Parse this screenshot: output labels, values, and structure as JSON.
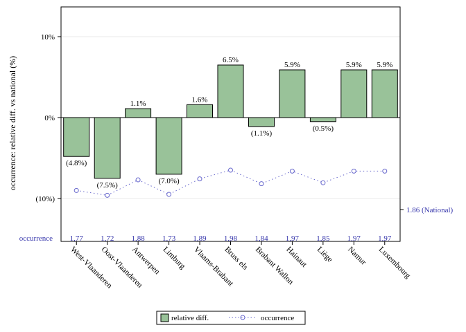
{
  "chart_data": {
    "type": "bar",
    "ylabel": "occurrence: relative diff. vs national (%)",
    "ylim": [
      -15,
      14
    ],
    "yticks": [
      {
        "value": 10,
        "label": "10%"
      },
      {
        "value": 0,
        "label": "0%"
      },
      {
        "value": -10,
        "label": "(10%)"
      }
    ],
    "categories": [
      "West-Vlaanderen",
      "Oost-Vlaanderen",
      "Antwerpen",
      "Limburg",
      "Vlaams-Brabant",
      "Bruss els",
      "Brabant Wallon",
      "Hainaut",
      "Liège",
      "Namur",
      "Luxembourg"
    ],
    "series": [
      {
        "name": "relative diff.",
        "color": "#99c299",
        "values": [
          -4.8,
          -7.5,
          1.1,
          -7.0,
          1.6,
          6.5,
          -1.1,
          5.9,
          -0.5,
          5.9,
          5.9
        ],
        "labels": [
          "(4.8%)",
          "(7.5%)",
          "1.1%",
          "(7.0%)",
          "1.6%",
          "6.5%",
          "(1.1%)",
          "5.9%",
          "(0.5%)",
          "5.9%",
          "5.9%"
        ]
      },
      {
        "name": "occurrence",
        "color": "#6666cc",
        "values": [
          1.77,
          1.72,
          1.88,
          1.73,
          1.89,
          1.98,
          1.84,
          1.97,
          1.85,
          1.97,
          1.97
        ],
        "labels": [
          "1,77",
          "1,72",
          "1,88",
          "1,73",
          "1,89",
          "1,98",
          "1,84",
          "1,97",
          "1,85",
          "1,97",
          "1,97"
        ]
      }
    ],
    "row_label": "occurrence",
    "national_label": "1.86 (National)",
    "legend": {
      "placement": "bottom"
    }
  }
}
